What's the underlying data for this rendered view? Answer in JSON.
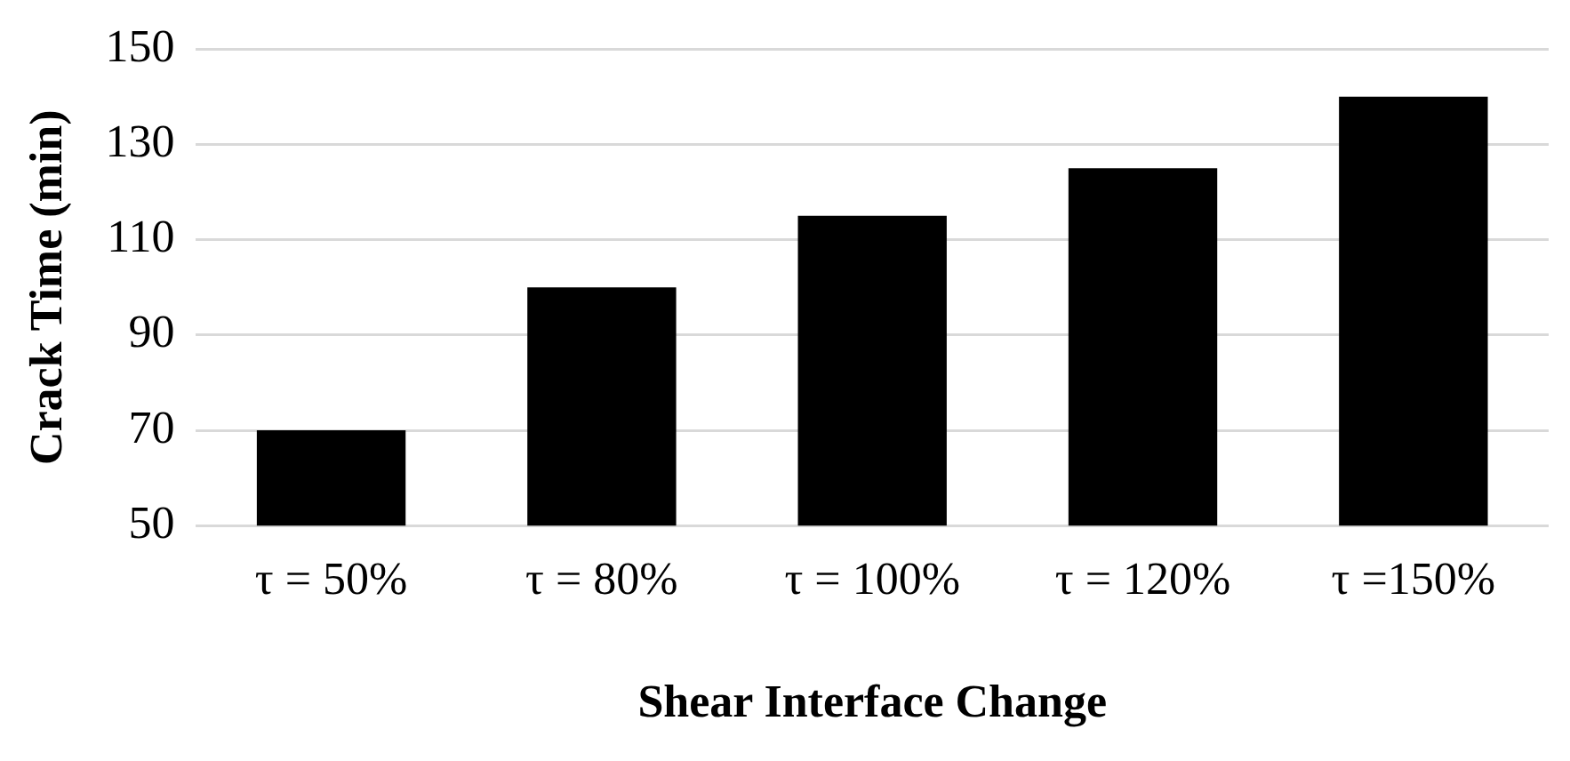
{
  "chart_data": {
    "type": "bar",
    "xlabel": "Shear Interface Change",
    "ylabel": "Crack Time (min)",
    "categories": [
      "τ = 50%",
      "τ = 80%",
      "τ = 100%",
      "τ = 120%",
      "τ =150%"
    ],
    "values": [
      70,
      100,
      115,
      125,
      140
    ],
    "color": "#000000",
    "ylim": [
      50,
      150
    ],
    "yticks": [
      50,
      70,
      90,
      110,
      130,
      150
    ],
    "grid": "y"
  }
}
